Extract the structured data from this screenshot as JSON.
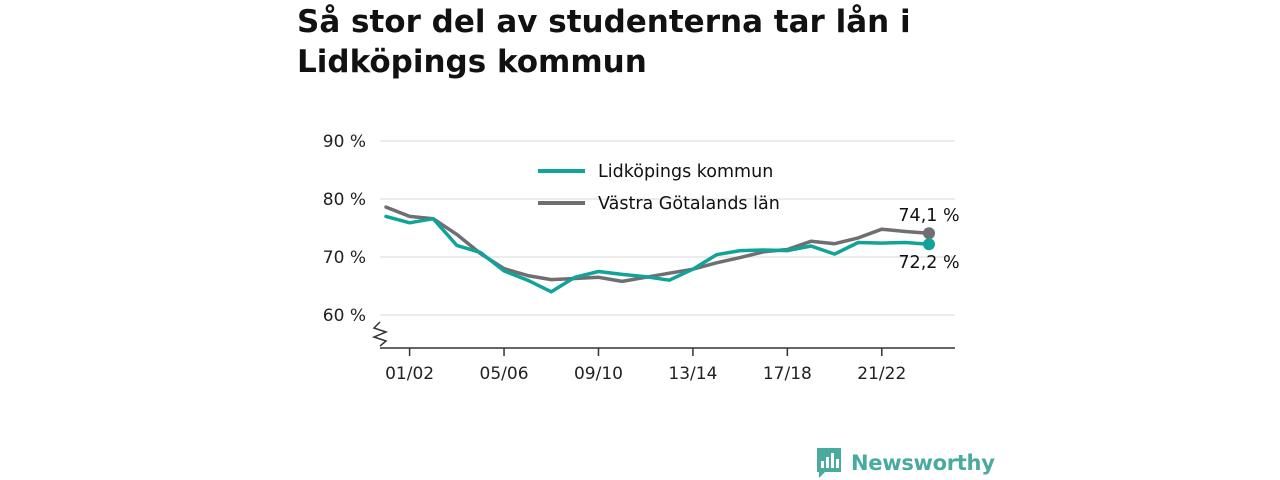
{
  "title": "Så stor del av studenterna tar lån i Lidköpings kommun",
  "colors": {
    "lidkoping": "#11a399",
    "vastra": "#6e6e73",
    "grid": "#d9d9d9",
    "axis": "#333333",
    "brand": "#4aaa9e"
  },
  "brand": {
    "name": "Newsworthy",
    "icon": "newsworthy-logo-icon"
  },
  "chart_data": {
    "type": "line",
    "x": [
      "00/01",
      "01/02",
      "02/03",
      "03/04",
      "04/05",
      "05/06",
      "06/07",
      "07/08",
      "08/09",
      "09/10",
      "10/11",
      "11/12",
      "12/13",
      "13/14",
      "14/15",
      "15/16",
      "16/17",
      "17/18",
      "18/19",
      "19/20",
      "20/21",
      "21/22",
      "22/23",
      "23/24"
    ],
    "xticks": [
      "01/02",
      "05/06",
      "09/10",
      "13/14",
      "17/18",
      "21/22"
    ],
    "yticks": [
      "60 %",
      "70 %",
      "80 %",
      "90 %"
    ],
    "ylim": [
      55,
      90
    ],
    "grid": true,
    "legend_position": "top",
    "series": [
      {
        "name": "Lidköpings kommun",
        "color": "#11a399",
        "values": [
          77.0,
          75.9,
          76.6,
          72.0,
          70.8,
          67.6,
          66.0,
          64.0,
          66.5,
          67.5,
          67.0,
          66.6,
          66.0,
          67.9,
          70.4,
          71.1,
          71.2,
          71.1,
          71.9,
          70.5,
          72.5,
          72.4,
          72.5,
          72.2
        ],
        "end_label": "72,2 %"
      },
      {
        "name": "Västra Götalands län",
        "color": "#6e6e73",
        "values": [
          78.6,
          77.0,
          76.6,
          73.9,
          70.6,
          68.0,
          66.8,
          66.1,
          66.3,
          66.5,
          65.8,
          66.5,
          67.2,
          67.9,
          69.0,
          69.9,
          70.9,
          71.3,
          72.7,
          72.3,
          73.3,
          74.8,
          74.4,
          74.1
        ],
        "end_label": "74,1 %"
      }
    ]
  }
}
